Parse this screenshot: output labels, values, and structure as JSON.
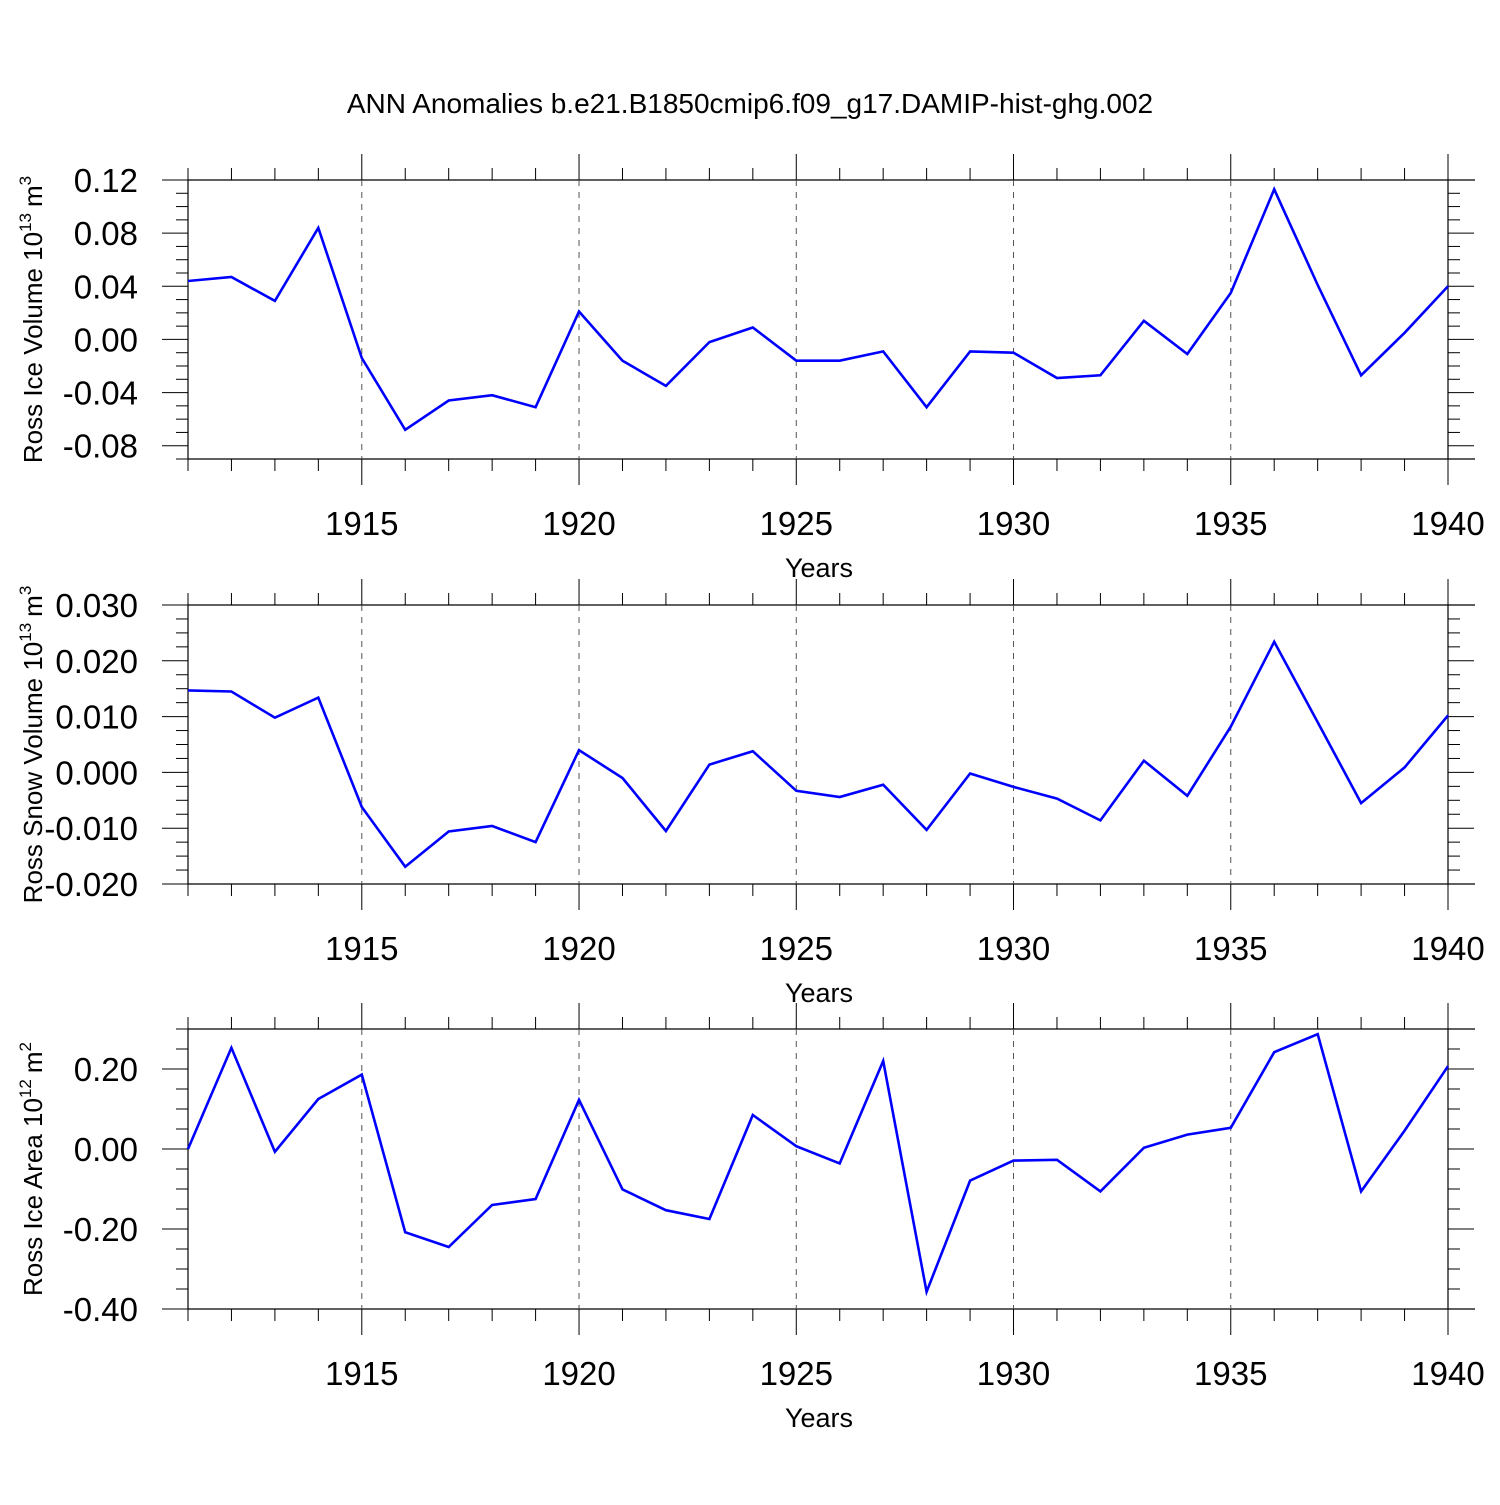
{
  "title": "ANN Anomalies b.e21.B1850cmip6.f09_g17.DAMIP-hist-ghg.002",
  "line_color": "#0000ff",
  "chart_data": [
    {
      "type": "line",
      "ylabel_main": "Ross Ice Volume 10",
      "ylabel_exp": "13",
      "ylabel_unit": "m",
      "ylabel_unit_exp": "3",
      "xlabel": "Years",
      "xlim": [
        1911,
        1940
      ],
      "ylim": [
        -0.09,
        0.12
      ],
      "yticks": [
        0.12,
        0.08,
        0.04,
        0.0,
        -0.04,
        -0.08
      ],
      "ytick_labels": [
        "0.12",
        "0.08",
        "0.04",
        "0.00",
        "-0.04",
        "-0.08"
      ],
      "xticks": [
        1915,
        1920,
        1925,
        1930,
        1935,
        1940
      ],
      "xtick_labels": [
        "1915",
        "1920",
        "1925",
        "1930",
        "1935",
        "1940"
      ],
      "x": [
        1911,
        1912,
        1913,
        1914,
        1915,
        1916,
        1917,
        1918,
        1919,
        1920,
        1921,
        1922,
        1923,
        1924,
        1925,
        1926,
        1927,
        1928,
        1929,
        1930,
        1931,
        1932,
        1933,
        1934,
        1935,
        1936,
        1937,
        1938,
        1939,
        1940
      ],
      "values": [
        0.044,
        0.047,
        0.029,
        0.084,
        -0.014,
        -0.068,
        -0.046,
        -0.042,
        -0.051,
        0.021,
        -0.016,
        -0.035,
        -0.002,
        0.009,
        -0.016,
        -0.016,
        -0.009,
        -0.051,
        -0.009,
        -0.01,
        -0.029,
        -0.027,
        0.014,
        -0.011,
        0.035,
        0.113,
        0.041,
        -0.027,
        0.005,
        0.04
      ]
    },
    {
      "type": "line",
      "ylabel_main": "Ross Snow Volume 10",
      "ylabel_exp": "13",
      "ylabel_unit": "m",
      "ylabel_unit_exp": "3",
      "xlabel": "Years",
      "xlim": [
        1911,
        1940
      ],
      "ylim": [
        -0.02,
        0.03
      ],
      "yticks": [
        0.03,
        0.02,
        0.01,
        0.0,
        -0.01,
        -0.02
      ],
      "ytick_labels": [
        "0.030",
        "0.020",
        "0.010",
        "0.000",
        "-0.010",
        "-0.020"
      ],
      "xticks": [
        1915,
        1920,
        1925,
        1930,
        1935,
        1940
      ],
      "xtick_labels": [
        "1915",
        "1920",
        "1925",
        "1930",
        "1935",
        "1940"
      ],
      "x": [
        1911,
        1912,
        1913,
        1914,
        1915,
        1916,
        1917,
        1918,
        1919,
        1920,
        1921,
        1922,
        1923,
        1924,
        1925,
        1926,
        1927,
        1928,
        1929,
        1930,
        1931,
        1932,
        1933,
        1934,
        1935,
        1936,
        1937,
        1938,
        1939,
        1940
      ],
      "values": [
        0.0147,
        0.0145,
        0.0098,
        0.0134,
        -0.0062,
        -0.0169,
        -0.0106,
        -0.0096,
        -0.0125,
        0.004,
        -0.001,
        -0.0105,
        0.0014,
        0.0038,
        -0.0033,
        -0.0044,
        -0.0022,
        -0.0103,
        -0.0002,
        -0.0026,
        -0.0047,
        -0.0086,
        0.0021,
        -0.0042,
        0.0082,
        0.0234,
        0.009,
        -0.0055,
        0.0009,
        0.0102
      ]
    },
    {
      "type": "line",
      "ylabel_main": "Ross Ice Area 10",
      "ylabel_exp": "12",
      "ylabel_unit": "m",
      "ylabel_unit_exp": "2",
      "xlabel": "Years",
      "xlim": [
        1911,
        1940
      ],
      "ylim": [
        -0.4,
        0.3
      ],
      "yticks": [
        0.2,
        0.0,
        -0.2,
        -0.4
      ],
      "ytick_labels": [
        "0.20",
        "0.00",
        "-0.20",
        "-0.40"
      ],
      "xticks": [
        1915,
        1920,
        1925,
        1930,
        1935,
        1940
      ],
      "xtick_labels": [
        "1915",
        "1920",
        "1925",
        "1930",
        "1935",
        "1940"
      ],
      "x": [
        1911,
        1912,
        1913,
        1914,
        1915,
        1916,
        1917,
        1918,
        1919,
        1920,
        1921,
        1922,
        1923,
        1924,
        1925,
        1926,
        1927,
        1928,
        1929,
        1930,
        1931,
        1932,
        1933,
        1934,
        1935,
        1936,
        1937,
        1938,
        1939,
        1940
      ],
      "values": [
        0.0,
        0.253,
        -0.007,
        0.125,
        0.186,
        -0.208,
        -0.245,
        -0.14,
        -0.125,
        0.123,
        -0.101,
        -0.153,
        -0.175,
        0.085,
        0.007,
        -0.036,
        0.22,
        -0.357,
        -0.079,
        -0.029,
        -0.027,
        -0.106,
        0.003,
        0.036,
        0.053,
        0.242,
        0.287,
        -0.106,
        0.046,
        0.207
      ]
    }
  ]
}
